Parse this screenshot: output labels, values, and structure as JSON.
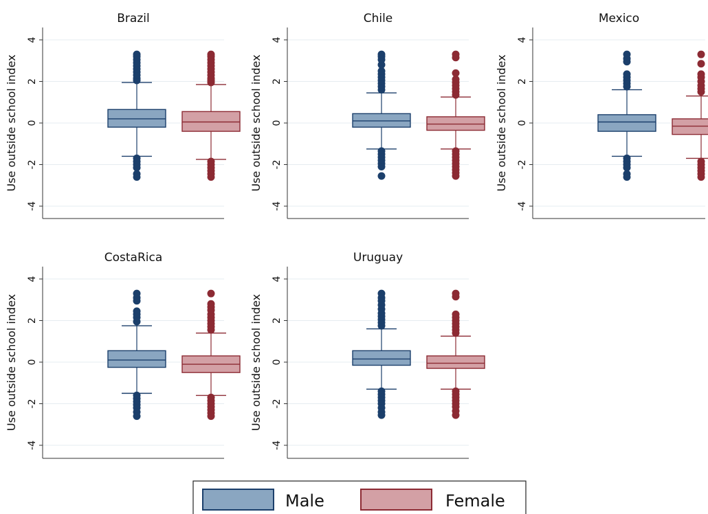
{
  "chart_data": [
    {
      "type": "box",
      "title": "Brazil",
      "ylabel": "Use outside school index",
      "ylim": [
        -4.6,
        4.6
      ],
      "yticks": [
        "4",
        "2",
        "0",
        "-2",
        "-4"
      ],
      "grid": true,
      "series": [
        {
          "name": "Male",
          "q1": -0.2,
          "median": 0.2,
          "q3": 0.65,
          "whisker_low": -1.6,
          "whisker_high": 1.95,
          "outliers_high": [
            2.05,
            2.15,
            2.3,
            2.45,
            2.6,
            2.75,
            2.9,
            3.05,
            3.2,
            3.3
          ],
          "outliers_low": [
            -1.7,
            -1.85,
            -2.0,
            -2.15,
            -2.45,
            -2.6
          ]
        },
        {
          "name": "Female",
          "q1": -0.4,
          "median": 0.05,
          "q3": 0.55,
          "whisker_low": -1.75,
          "whisker_high": 1.85,
          "outliers_high": [
            1.95,
            2.05,
            2.15,
            2.3,
            2.45,
            2.6,
            2.75,
            2.9,
            3.05,
            3.2,
            3.3
          ],
          "outliers_low": [
            -1.85,
            -2.0,
            -2.15,
            -2.3,
            -2.45,
            -2.6
          ]
        }
      ]
    },
    {
      "type": "box",
      "title": "Chile",
      "ylabel": "Use outside school index",
      "ylim": [
        -4.6,
        4.6
      ],
      "yticks": [
        "4",
        "2",
        "0",
        "-2",
        "-4"
      ],
      "grid": true,
      "series": [
        {
          "name": "Male",
          "q1": -0.2,
          "median": 0.1,
          "q3": 0.45,
          "whisker_low": -1.25,
          "whisker_high": 1.45,
          "outliers_high": [
            1.6,
            1.75,
            1.9,
            2.05,
            2.2,
            2.35,
            2.5,
            2.8,
            3.05,
            3.2,
            3.3
          ],
          "outliers_low": [
            -1.35,
            -1.5,
            -1.65,
            -1.8,
            -1.95,
            -2.1,
            -2.55
          ]
        },
        {
          "name": "Female",
          "q1": -0.35,
          "median": -0.05,
          "q3": 0.3,
          "whisker_low": -1.25,
          "whisker_high": 1.25,
          "outliers_high": [
            1.35,
            1.5,
            1.65,
            1.8,
            1.95,
            2.1,
            2.4,
            3.15,
            3.3
          ],
          "outliers_low": [
            -1.35,
            -1.5,
            -1.65,
            -1.8,
            -1.95,
            -2.1,
            -2.25,
            -2.4,
            -2.55
          ]
        }
      ]
    },
    {
      "type": "box",
      "title": "Mexico",
      "ylabel": "Use outside school index",
      "ylim": [
        -4.6,
        4.6
      ],
      "yticks": [
        "4",
        "2",
        "0",
        "-2",
        "-4"
      ],
      "grid": true,
      "series": [
        {
          "name": "Male",
          "q1": -0.4,
          "median": 0.05,
          "q3": 0.4,
          "whisker_low": -1.6,
          "whisker_high": 1.6,
          "outliers_high": [
            1.75,
            1.9,
            2.05,
            2.2,
            2.35,
            2.95,
            3.1,
            3.3
          ],
          "outliers_low": [
            -1.7,
            -1.85,
            -2.0,
            -2.15,
            -2.45,
            -2.6
          ]
        },
        {
          "name": "Female",
          "q1": -0.55,
          "median": -0.15,
          "q3": 0.2,
          "whisker_low": -1.7,
          "whisker_high": 1.3,
          "outliers_high": [
            1.5,
            1.65,
            1.8,
            2.0,
            2.2,
            2.35,
            2.85,
            3.3
          ],
          "outliers_low": [
            -1.85,
            -2.0,
            -2.15,
            -2.3,
            -2.45,
            -2.6
          ]
        }
      ]
    },
    {
      "type": "box",
      "title": "CostaRica",
      "ylabel": "Use outside school index",
      "ylim": [
        -4.6,
        4.6
      ],
      "yticks": [
        "4",
        "2",
        "0",
        "-2",
        "-4"
      ],
      "grid": true,
      "series": [
        {
          "name": "Male",
          "q1": -0.25,
          "median": 0.1,
          "q3": 0.55,
          "whisker_low": -1.5,
          "whisker_high": 1.75,
          "outliers_high": [
            1.95,
            2.15,
            2.3,
            2.45,
            2.95,
            3.1,
            3.3
          ],
          "outliers_low": [
            -1.6,
            -1.75,
            -1.9,
            -2.05,
            -2.2,
            -2.4,
            -2.6
          ]
        },
        {
          "name": "Female",
          "q1": -0.5,
          "median": -0.1,
          "q3": 0.3,
          "whisker_low": -1.6,
          "whisker_high": 1.4,
          "outliers_high": [
            1.55,
            1.7,
            1.85,
            2.0,
            2.15,
            2.3,
            2.5,
            2.65,
            2.8,
            3.3
          ],
          "outliers_low": [
            -1.7,
            -1.85,
            -2.0,
            -2.15,
            -2.3,
            -2.45,
            -2.6
          ]
        }
      ]
    },
    {
      "type": "box",
      "title": "Uruguay",
      "ylabel": "Use outside school index",
      "ylim": [
        -4.6,
        4.6
      ],
      "yticks": [
        "4",
        "2",
        "0",
        "-2",
        "-4"
      ],
      "grid": true,
      "series": [
        {
          "name": "Male",
          "q1": -0.15,
          "median": 0.15,
          "q3": 0.55,
          "whisker_low": -1.3,
          "whisker_high": 1.6,
          "outliers_high": [
            1.75,
            1.9,
            2.05,
            2.2,
            2.35,
            2.55,
            2.75,
            2.95,
            3.1,
            3.3
          ],
          "outliers_low": [
            -1.4,
            -1.55,
            -1.7,
            -1.85,
            -2.0,
            -2.2,
            -2.4,
            -2.55
          ]
        },
        {
          "name": "Female",
          "q1": -0.3,
          "median": -0.05,
          "q3": 0.3,
          "whisker_low": -1.3,
          "whisker_high": 1.25,
          "outliers_high": [
            1.4,
            1.55,
            1.7,
            1.85,
            2.0,
            2.15,
            2.3,
            3.15,
            3.3
          ],
          "outliers_low": [
            -1.4,
            -1.55,
            -1.7,
            -1.85,
            -2.0,
            -2.15,
            -2.35,
            -2.55
          ]
        }
      ]
    }
  ],
  "legend": {
    "placement": "bottom",
    "items": [
      {
        "label": "Male",
        "fill": "#8aa6c1",
        "stroke": "#1b3f6b"
      },
      {
        "label": "Female",
        "fill": "#d3a0a5",
        "stroke": "#8c2a33"
      }
    ]
  },
  "colors": {
    "male_fill": "#8aa6c1",
    "male_line": "#1b3f6b",
    "female_fill": "#d3a0a5",
    "female_line": "#8c2a33",
    "grid": "#e6ecf0",
    "axis": "#333333"
  }
}
